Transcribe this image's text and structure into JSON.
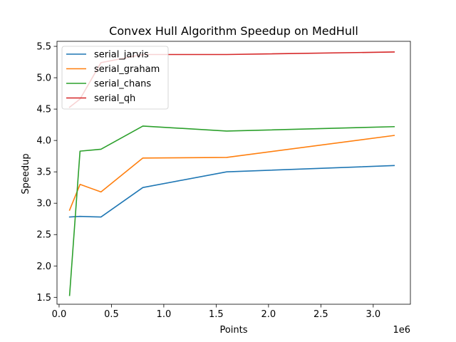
{
  "chart_data": {
    "type": "line",
    "title": "Convex Hull Algorithm Speedup on MedHull",
    "xlabel": "Points",
    "ylabel": "Speedup",
    "x_offset_text": "1e6",
    "x": [
      100000,
      200000,
      400000,
      800000,
      1600000,
      3200000
    ],
    "xlim": [
      -20000,
      3355000
    ],
    "ylim": [
      1.39,
      5.58
    ],
    "xticks": [
      0,
      500000,
      1000000,
      1500000,
      2000000,
      2500000,
      3000000
    ],
    "xtick_labels": [
      "0.0",
      "0.5",
      "1.0",
      "1.5",
      "2.0",
      "2.5",
      "3.0"
    ],
    "yticks": [
      1.5,
      2.0,
      2.5,
      3.0,
      3.5,
      4.0,
      4.5,
      5.0,
      5.5
    ],
    "ytick_labels": [
      "1.5",
      "2.0",
      "2.5",
      "3.0",
      "3.5",
      "4.0",
      "4.5",
      "5.0",
      "5.5"
    ],
    "grid": false,
    "legend_position": "top-left",
    "series": [
      {
        "name": "serial_jarvis",
        "color": "#1f77b4",
        "values": [
          2.78,
          2.79,
          2.78,
          3.25,
          3.5,
          3.6
        ]
      },
      {
        "name": "serial_graham",
        "color": "#ff7f0e",
        "values": [
          2.89,
          3.3,
          3.18,
          3.72,
          3.73,
          4.08
        ]
      },
      {
        "name": "serial_chans",
        "color": "#2ca02c",
        "values": [
          1.53,
          3.83,
          3.86,
          4.23,
          4.15,
          4.22
        ]
      },
      {
        "name": "serial_qh",
        "color": "#d62728",
        "values": [
          4.53,
          4.66,
          5.24,
          5.37,
          5.37,
          5.41
        ]
      }
    ]
  }
}
